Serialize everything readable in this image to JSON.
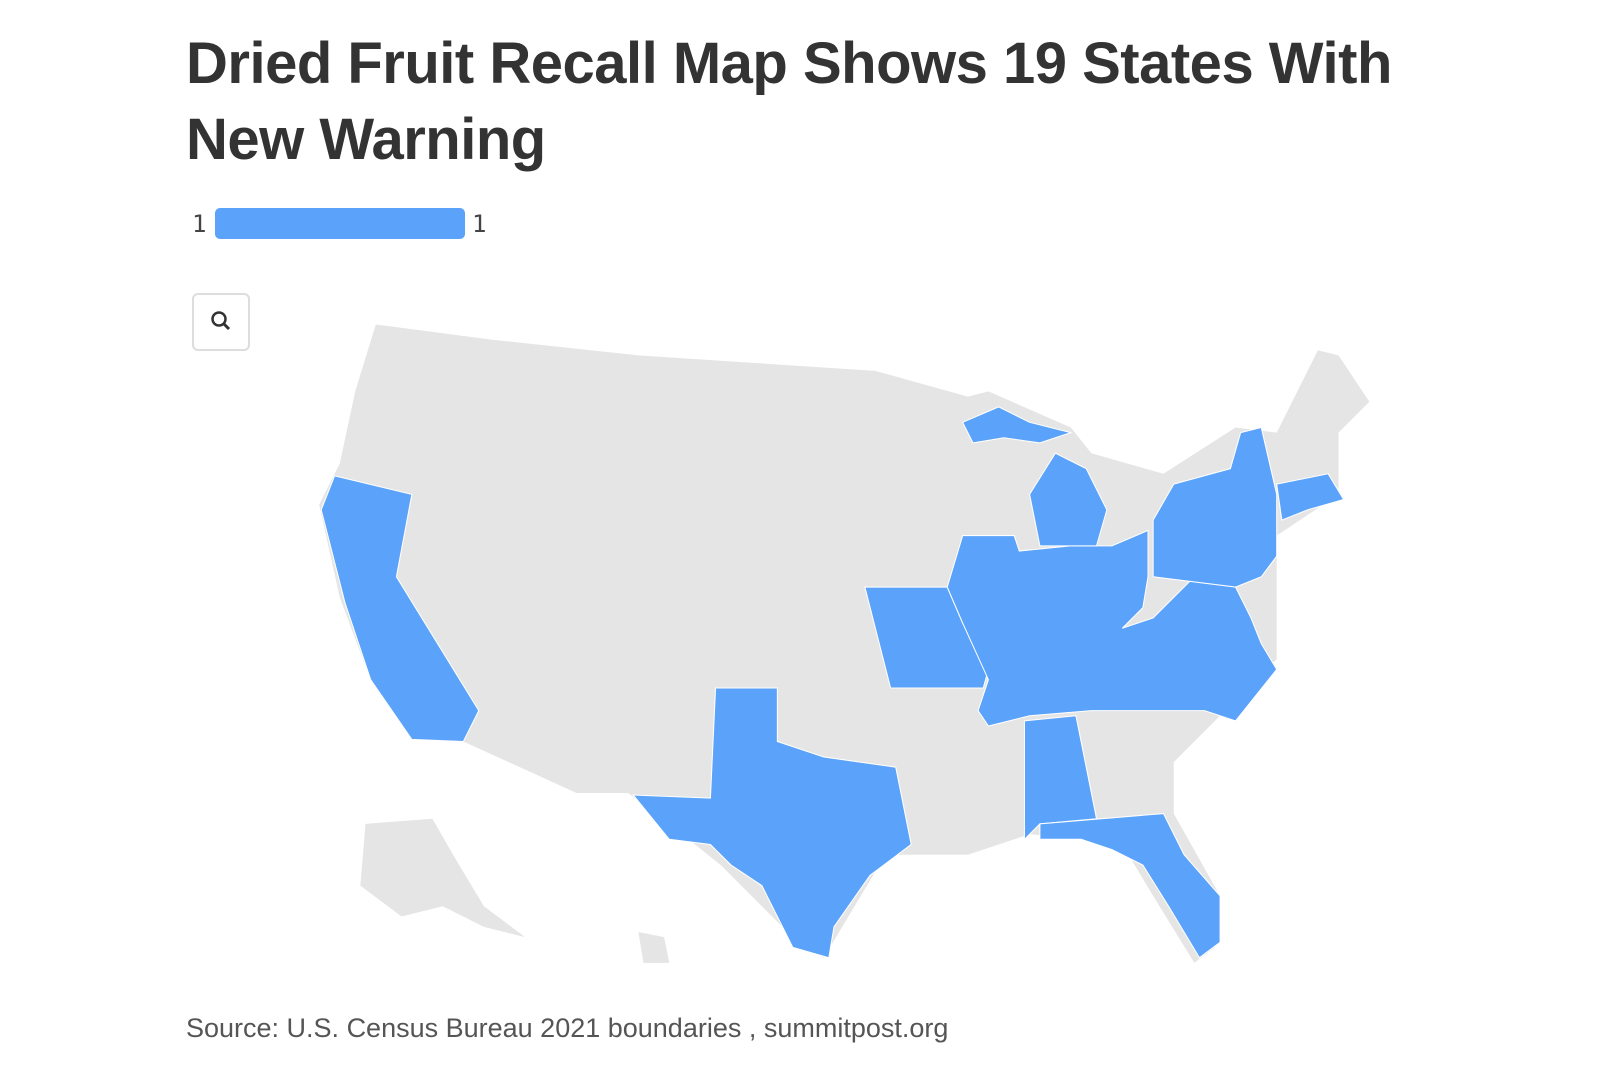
{
  "header": {
    "title": "Dried Fruit Recall Map Shows 19 States With New Warning"
  },
  "legend": {
    "min": 1,
    "max": 1,
    "color": "#5aa2fa"
  },
  "footer": {
    "source": "Source: U.S. Census Bureau 2021 boundaries , summitpost.org"
  }
}
